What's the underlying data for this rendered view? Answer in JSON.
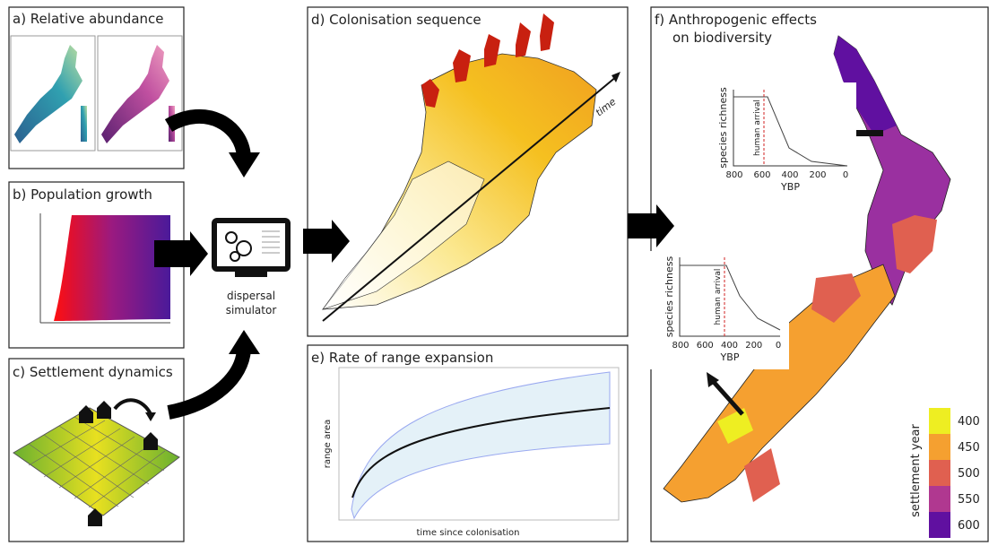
{
  "panels": {
    "a": {
      "title": "a) Relative abundance"
    },
    "b": {
      "title": "b) Population growth"
    },
    "c": {
      "title": "c) Settlement dynamics"
    },
    "d": {
      "title": "d) Colonisation sequence",
      "axis_label": "time"
    },
    "e": {
      "title": "e) Rate of range expansion",
      "y_label": "range area",
      "x_label": "time since colonisation"
    },
    "f": {
      "title": [
        "f) Anthropogenic effects",
        "on biodiversity"
      ]
    }
  },
  "simulator": {
    "label": [
      "dispersal",
      "simulator"
    ]
  },
  "insets": [
    {
      "y_label": "species richness",
      "annotation": "human arrival",
      "x_label": "YBP",
      "xticks": [
        800,
        600,
        400,
        200,
        0
      ]
    },
    {
      "y_label": "species richness",
      "annotation": "human arrival",
      "x_label": "YBP",
      "xticks": [
        800,
        600,
        400,
        200,
        0
      ]
    }
  ],
  "legend": {
    "title": "settlement year",
    "items": [
      {
        "label": "400",
        "color": "#eeee22"
      },
      {
        "label": "450",
        "color": "#f5a030"
      },
      {
        "label": "500",
        "color": "#e06050"
      },
      {
        "label": "550",
        "color": "#b03890"
      },
      {
        "label": "600",
        "color": "#6010a0"
      }
    ]
  }
}
